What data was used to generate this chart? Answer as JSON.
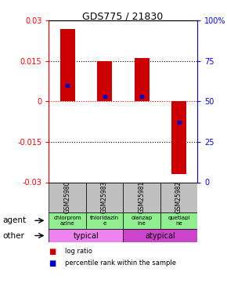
{
  "title": "GDS775 / 21830",
  "samples": [
    "GSM25980",
    "GSM25983",
    "GSM25981",
    "GSM25982"
  ],
  "log_ratios": [
    0.027,
    0.015,
    0.016,
    -0.027
  ],
  "percentile_ranks": [
    0.6,
    0.53,
    0.53,
    0.37
  ],
  "ylim": [
    -0.03,
    0.03
  ],
  "yticks_left": [
    -0.03,
    -0.015,
    0,
    0.015,
    0.03
  ],
  "yticks_right": [
    0,
    25,
    50,
    75,
    100
  ],
  "agents": [
    "chlorprom\nazine",
    "thioridazin\ne",
    "olanzap\nine",
    "quetiapi\nne"
  ],
  "typical_color": "#ee82ee",
  "atypical_color": "#cc44cc",
  "bar_color": "#cc0000",
  "percentile_color": "#0000cc",
  "sample_bg_color": "#c0c0c0",
  "agent_bg_color": "#90ee90",
  "legend_red": "log ratio",
  "legend_blue": "percentile rank within the sample",
  "bar_width": 0.4
}
